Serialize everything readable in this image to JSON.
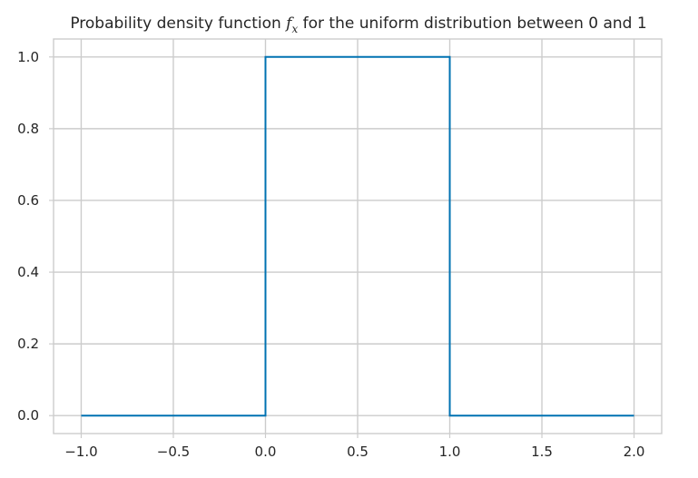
{
  "chart_data": {
    "type": "line",
    "title": {
      "prefix": "Probability density function ",
      "symbol_main": "f",
      "symbol_sub": "x",
      "suffix": " for the uniform distribution between 0 and 1"
    },
    "xlabel": "",
    "ylabel": "",
    "xlim": [
      -1.15,
      2.15
    ],
    "ylim": [
      -0.05,
      1.05
    ],
    "x_ticks": [
      {
        "value": -1.0,
        "label": "−1.0"
      },
      {
        "value": -0.5,
        "label": "−0.5"
      },
      {
        "value": 0.0,
        "label": "0.0"
      },
      {
        "value": 0.5,
        "label": "0.5"
      },
      {
        "value": 1.0,
        "label": "1.0"
      },
      {
        "value": 1.5,
        "label": "1.5"
      },
      {
        "value": 2.0,
        "label": "2.0"
      }
    ],
    "y_ticks": [
      {
        "value": 0.0,
        "label": "0.0"
      },
      {
        "value": 0.2,
        "label": "0.2"
      },
      {
        "value": 0.4,
        "label": "0.4"
      },
      {
        "value": 0.6,
        "label": "0.6"
      },
      {
        "value": 0.8,
        "label": "0.8"
      },
      {
        "value": 1.0,
        "label": "1.0"
      }
    ],
    "grid": true,
    "series": [
      {
        "color": "#0072b2",
        "x": [
          -1.0,
          0.0,
          0.0,
          1.0,
          1.0,
          2.0
        ],
        "y": [
          0.0,
          0.0,
          1.0,
          1.0,
          0.0,
          0.0
        ]
      }
    ]
  }
}
